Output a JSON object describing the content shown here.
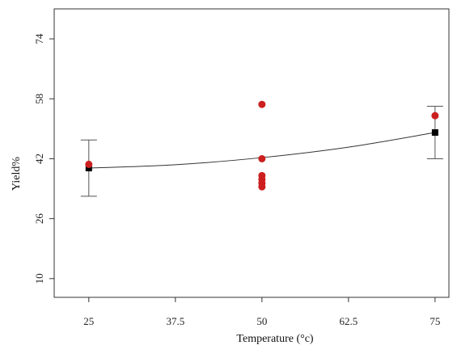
{
  "chart_data": {
    "type": "scatter",
    "xlabel": "Temperature (°c)",
    "ylabel": "Yield%",
    "xlim": [
      20,
      77
    ],
    "ylim": [
      5,
      82
    ],
    "xticks": [
      25,
      37.5,
      50,
      62.5,
      75
    ],
    "xtick_labels": [
      "25",
      "37.5",
      "50",
      "62.5",
      "75"
    ],
    "yticks": [
      10,
      26,
      42,
      58,
      74
    ],
    "ytick_labels": [
      "10",
      "26",
      "42",
      "58",
      "74"
    ],
    "grid": false,
    "legend": "none",
    "observed_points": [
      {
        "x": 25,
        "y": 40.5
      },
      {
        "x": 50,
        "y": 56.5
      },
      {
        "x": 50,
        "y": 42.0
      },
      {
        "x": 50,
        "y": 37.5
      },
      {
        "x": 50,
        "y": 36.5
      },
      {
        "x": 50,
        "y": 35.5
      },
      {
        "x": 50,
        "y": 34.5
      },
      {
        "x": 75,
        "y": 53.5
      }
    ],
    "group_means": [
      {
        "x": 25,
        "y": 39.5,
        "lower": 32.0,
        "upper": 47.0
      },
      {
        "x": 75,
        "y": 49.0,
        "lower": 42.0,
        "upper": 56.0
      }
    ],
    "fitted_curve": {
      "x": [
        25,
        37.5,
        50,
        62.5,
        75
      ],
      "y": [
        39.5,
        40.4,
        42.3,
        45.1,
        49.0
      ]
    },
    "colors": {
      "observed": "#cc1f1f",
      "mean": "#000000",
      "error_bar": "#555555",
      "curve": "#333333",
      "axis": "#333333"
    }
  }
}
